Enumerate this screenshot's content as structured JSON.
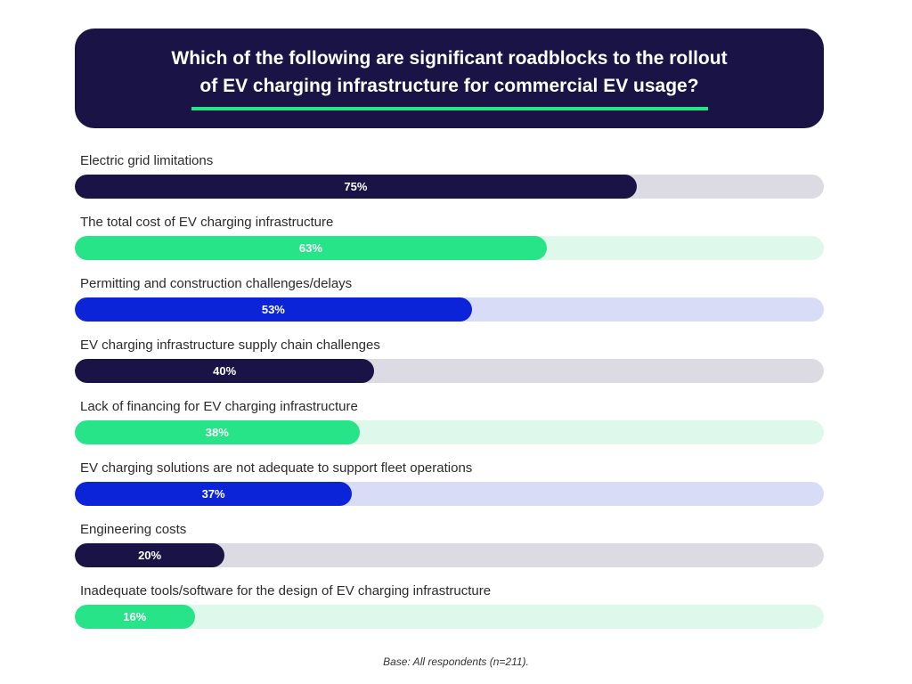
{
  "header": {
    "title_line1": "Which of the following are significant roadblocks to the rollout",
    "title_line2": "of EV charging infrastructure for commercial EV usage?"
  },
  "chart_data": {
    "type": "bar",
    "orientation": "horizontal",
    "title": "Which of the following are significant roadblocks to the rollout of EV charging infrastructure for commercial EV usage?",
    "xlim": [
      0,
      100
    ],
    "grid": false,
    "categories": [
      "Electric grid limitations",
      "The total cost of EV charging infrastructure",
      "Permitting and construction challenges/delays",
      "EV charging infrastructure supply chain challenges",
      "Lack of financing for EV charging infrastructure",
      "EV charging solutions are not adequate to support fleet operations",
      "Engineering costs",
      "Inadequate tools/software for the design of EV charging infrastructure"
    ],
    "values": [
      75,
      63,
      53,
      40,
      38,
      37,
      20,
      16
    ],
    "value_labels": [
      "75%",
      "63%",
      "53%",
      "40%",
      "38%",
      "37%",
      "20%",
      "16%"
    ]
  },
  "colors": {
    "navy": "#1a1446",
    "green": "#27e489",
    "blue": "#0b24d8",
    "track_navy": "#dcdbe3",
    "track_green": "#dff8ec",
    "track_blue": "#d9dcf7",
    "underline": "#27e489"
  },
  "row_colors": [
    "navy",
    "green",
    "blue",
    "navy",
    "green",
    "blue",
    "navy",
    "green"
  ],
  "footnote": "Base: All respondents (n=211)."
}
